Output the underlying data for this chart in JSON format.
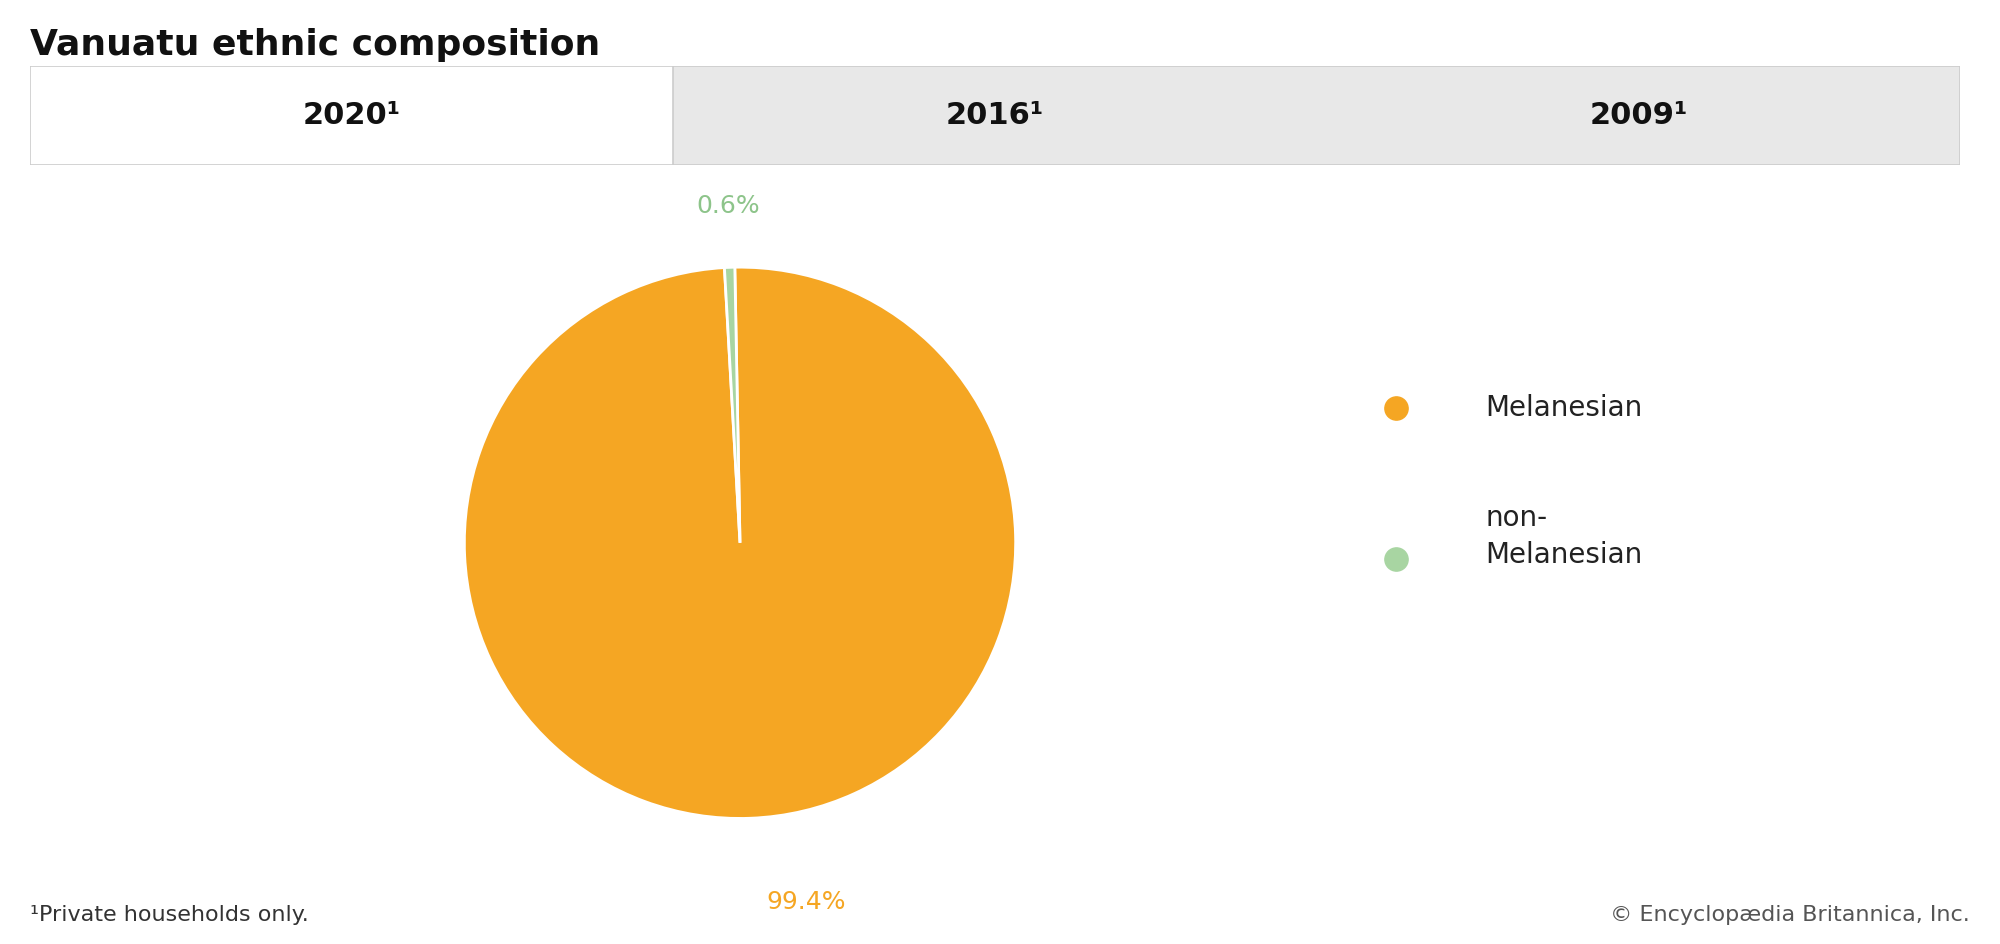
{
  "title": "Vanuatu ethnic composition",
  "tab_labels": [
    "2020¹",
    "2016¹",
    "2009¹"
  ],
  "active_tab": 0,
  "slices": [
    99.4,
    0.6
  ],
  "slice_labels": [
    "99.4%",
    "0.6%"
  ],
  "slice_colors": [
    "#F5A623",
    "#A8D5A2"
  ],
  "legend_labels": [
    "Melanesian",
    "non-\nMelanesian"
  ],
  "label_colors": [
    "#F5A623",
    "#8DC48A"
  ],
  "footnote": "¹Private households only.",
  "copyright": "© Encyclopædia Britannica, Inc.",
  "bg_color": "#ffffff",
  "tab_bg_active": "#ffffff",
  "tab_bg_inactive": "#e8e8e8",
  "tab_border_color": "#cccccc",
  "title_fontsize": 26,
  "tab_fontsize": 22,
  "label_fontsize": 18,
  "legend_fontsize": 20,
  "footnote_fontsize": 16
}
